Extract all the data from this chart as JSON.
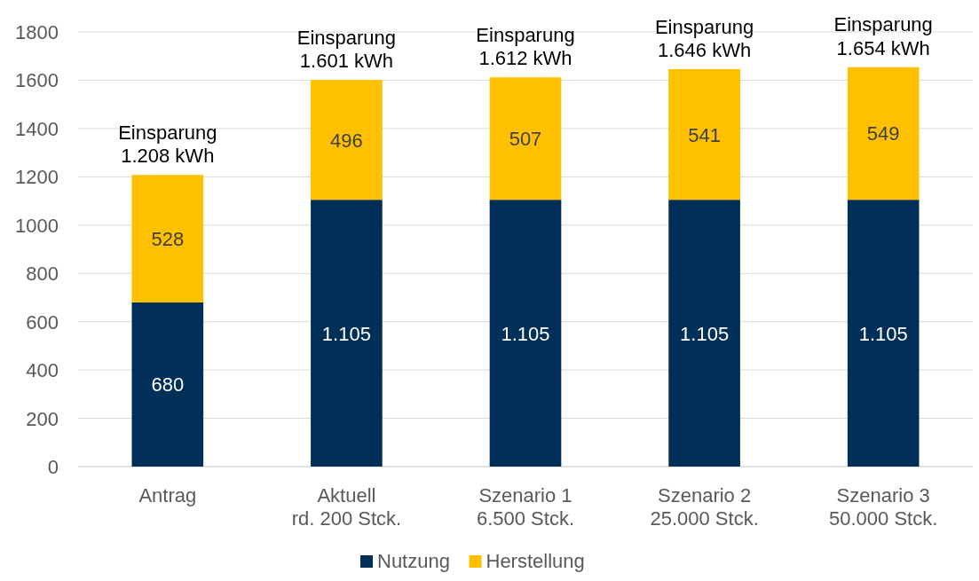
{
  "chart_data": {
    "type": "bar",
    "stacked": true,
    "categories": [
      "Antrag",
      "Aktuell\nrd. 200 Stck.",
      "Szenario 1\n6.500 Stck.",
      "Szenario 2\n25.000 Stck.",
      "Szenario 3\n50.000 Stck."
    ],
    "series": [
      {
        "name": "Nutzung",
        "color": "#003057",
        "values": [
          680,
          1105,
          1105,
          1105,
          1105
        ],
        "value_labels": [
          "680",
          "1.105",
          "1.105",
          "1.105",
          "1.105"
        ]
      },
      {
        "name": "Herstellung",
        "color": "#ffc000",
        "values": [
          528,
          496,
          507,
          541,
          549
        ],
        "value_labels": [
          "528",
          "496",
          "507",
          "541",
          "549"
        ]
      }
    ],
    "totals": [
      "Einsparung\n1.208 kWh",
      "Einsparung\n1.601 kWh",
      "Einsparung\n1.612 kWh",
      "Einsparung\n1.646 kWh",
      "Einsparung\n1.654 kWh"
    ],
    "ylim": [
      0,
      1800
    ],
    "yticks": [
      0,
      200,
      400,
      600,
      800,
      1000,
      1200,
      1400,
      1600,
      1800
    ],
    "grid": "y",
    "legend": "bottom"
  }
}
